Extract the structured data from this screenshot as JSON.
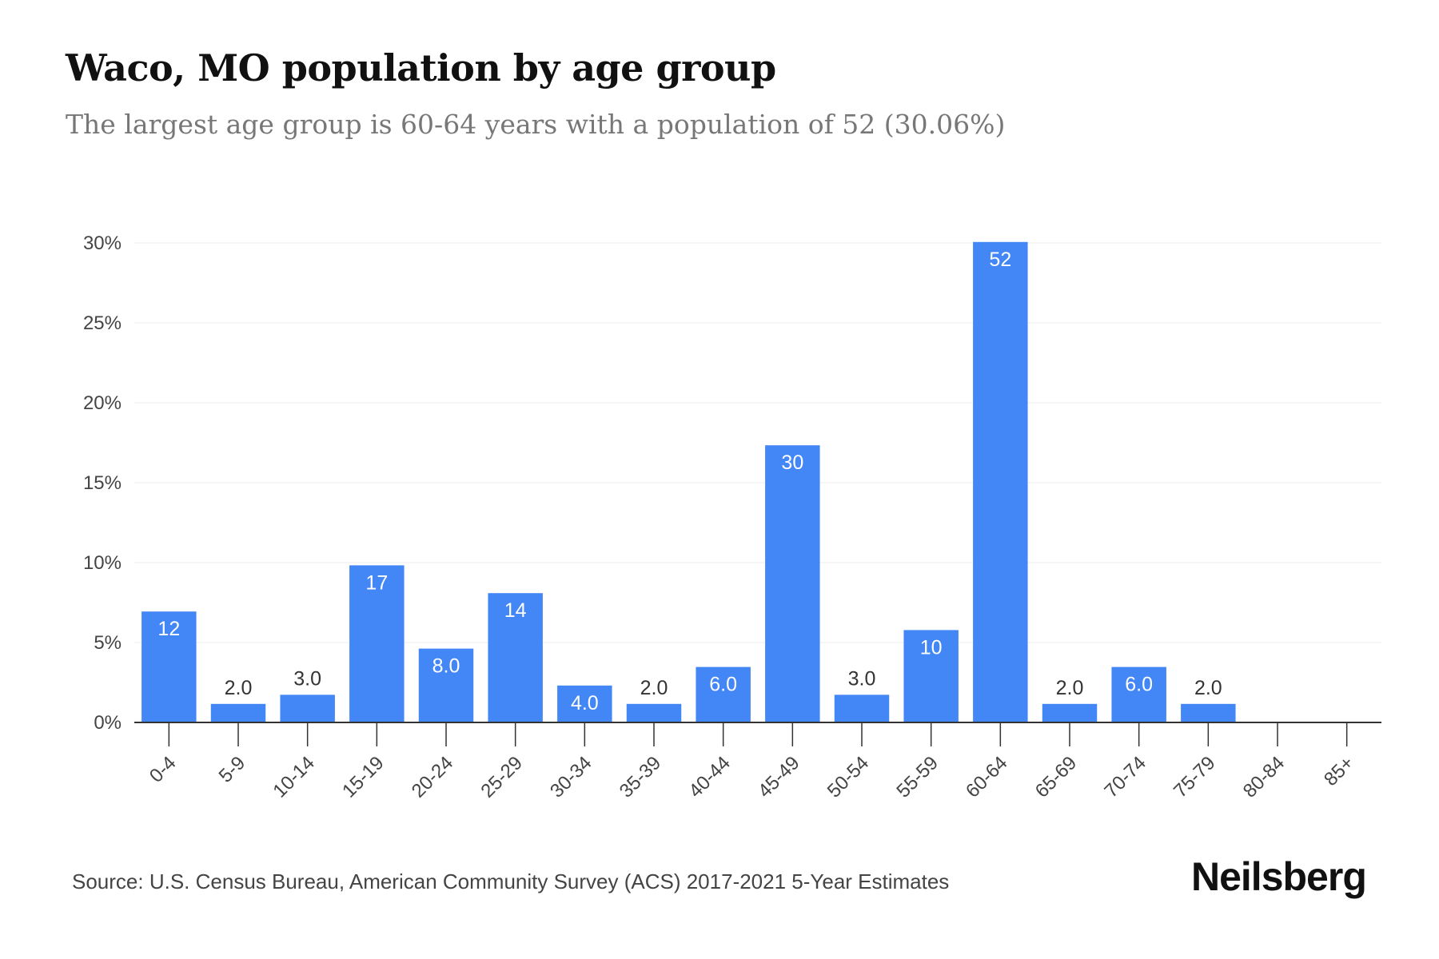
{
  "header": {
    "title": "Waco, MO population by age group",
    "subtitle": "The largest age group is 60-64 years with a population of 52 (30.06%)"
  },
  "footer": {
    "source": "Source: U.S. Census Bureau, American Community Survey (ACS) 2017-2021 5-Year Estimates",
    "brand": "Neilsberg"
  },
  "colors": {
    "bar": "#4287f5",
    "grid": "#eeeeee",
    "axis": "#333333"
  },
  "chart_data": {
    "type": "bar",
    "title": "Waco, MO population by age group",
    "xlabel": "",
    "ylabel": "",
    "ylim": [
      0,
      30
    ],
    "yticks": [
      "0%",
      "5%",
      "10%",
      "15%",
      "20%",
      "25%",
      "30%"
    ],
    "categories": [
      "0-4",
      "5-9",
      "10-14",
      "15-19",
      "20-24",
      "25-29",
      "30-34",
      "35-39",
      "40-44",
      "45-49",
      "50-54",
      "55-59",
      "60-64",
      "65-69",
      "70-74",
      "75-79",
      "80-84",
      "85+"
    ],
    "values": [
      6.94,
      1.16,
      1.73,
      9.83,
      4.62,
      8.09,
      2.31,
      1.16,
      3.47,
      17.34,
      1.73,
      5.78,
      30.06,
      1.16,
      3.47,
      1.16,
      0,
      0
    ],
    "labels": [
      "12",
      "2.0",
      "3.0",
      "17",
      "8.0",
      "14",
      "4.0",
      "2.0",
      "6.0",
      "30",
      "3.0",
      "10",
      "52",
      "2.0",
      "6.0",
      "2.0",
      "",
      ""
    ],
    "grid": true
  }
}
